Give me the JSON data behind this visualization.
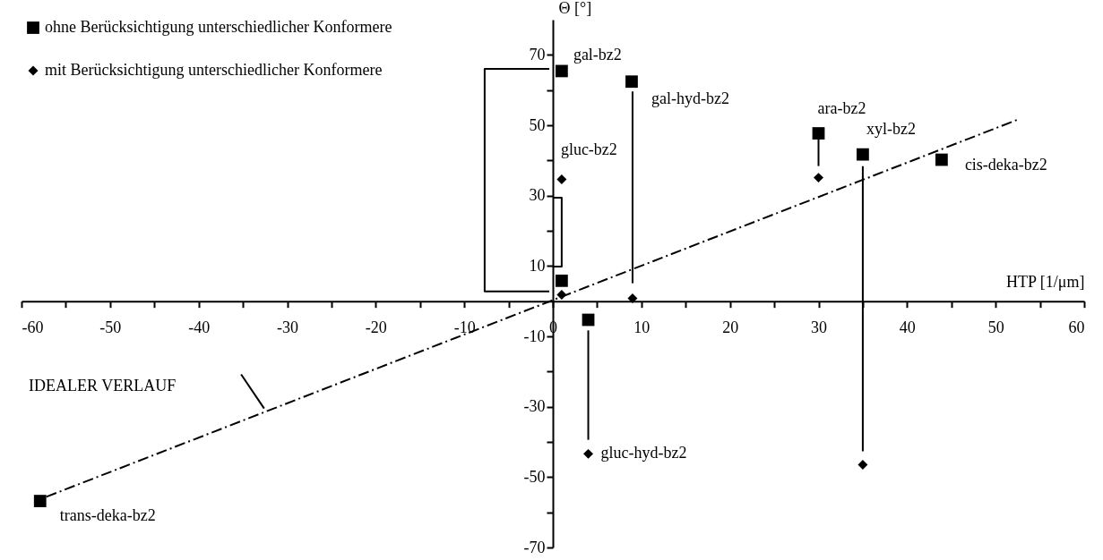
{
  "chart_data": {
    "type": "scatter",
    "xlabel": "HTP [1/μm]",
    "ylabel": "Θ [°]",
    "xlim": [
      -60,
      60
    ],
    "ylim": [
      -70,
      80
    ],
    "xticks": [
      -60,
      {
        "value": -55,
        "label": null
      },
      -50,
      {
        "value": -45,
        "label": null
      },
      -40,
      {
        "value": -35,
        "label": null
      },
      -30,
      {
        "value": -25,
        "label": null
      },
      -20,
      {
        "value": -15,
        "label": null
      },
      -10,
      {
        "value": -5,
        "label": null
      },
      0,
      {
        "value": 5,
        "label": null
      },
      10,
      {
        "value": 15,
        "label": null
      },
      20,
      {
        "value": 25,
        "label": null
      },
      30,
      {
        "value": 35,
        "label": null
      },
      40,
      {
        "value": 45,
        "label": null
      },
      50,
      {
        "value": 55,
        "label": null
      },
      60
    ],
    "yticks": [
      -70,
      {
        "value": -60,
        "label": null
      },
      -50,
      {
        "value": -40,
        "label": null
      },
      -30,
      {
        "value": -20,
        "label": null
      },
      -10,
      10,
      {
        "value": 20,
        "label": null
      },
      30,
      {
        "value": 40,
        "label": null
      },
      50,
      {
        "value": 60,
        "label": null
      },
      70
    ],
    "legend": "top left",
    "series": [
      {
        "name": "ohne Berücksichtigung unterschiedlicher Konformere",
        "marker": "square",
        "color": "#000000",
        "x": [
          1.0,
          8.9,
          1.0,
          4.0,
          30.0,
          35.0,
          43.9,
          -57.9
        ],
        "values": [
          65.4,
          62.4,
          5.8,
          -5.3,
          47.7,
          41.7,
          40.2,
          -56.8
        ]
      },
      {
        "name": "mit Berücksichtigung unterschiedlicher Konformere",
        "marker": "diamond",
        "color": "#000000",
        "x": [
          1.0,
          1.0,
          9.0,
          4.0,
          30.0,
          35.0
        ],
        "values": [
          34.6,
          1.8,
          0.8,
          -43.4,
          35.1,
          -46.5
        ]
      },
      {
        "type": "line",
        "line_style": "dashed",
        "color": "#000000",
        "x": [
          -57.2,
          52.4
        ],
        "values": [
          -55.6,
          51.5
        ]
      },
      {
        "type": "line",
        "line_style": "solid",
        "color": "#000000",
        "x": [
          -0.4,
          -7.7,
          -7.7,
          -0.4
        ],
        "values": [
          66.0,
          66.0,
          2.8,
          2.8
        ]
      },
      {
        "type": "line",
        "line_style": "solid",
        "color": "#000000",
        "x": [
          0,
          1.0,
          1.0,
          0
        ],
        "values": [
          29.4,
          29.4,
          9.8,
          9.8
        ]
      },
      {
        "type": "line",
        "line_style": "solid",
        "color": "#000000",
        "x": [
          9.0,
          9.0
        ],
        "values": [
          59.6,
          5.1
        ]
      },
      {
        "type": "line",
        "line_style": "solid",
        "color": "#000000",
        "x": [
          4.0,
          4.0
        ],
        "values": [
          -8.3,
          -39.4
        ]
      },
      {
        "type": "line",
        "line_style": "solid",
        "color": "#000000",
        "x": [
          30.0,
          30.0
        ],
        "values": [
          46.0,
          38.4
        ]
      },
      {
        "type": "line",
        "line_style": "solid",
        "color": "#000000",
        "x": [
          35.0,
          35.0
        ],
        "values": [
          38.4,
          -42.7
        ]
      },
      {
        "type": "line",
        "line_style": "solid",
        "color": "#000000",
        "x": [
          -35.2,
          -32.6
        ],
        "values": [
          -20.8,
          -30.5
        ]
      }
    ],
    "annotations": [
      {
        "text": "gal-bz2",
        "x": 1.0,
        "y": 65.4
      },
      {
        "text": "gal-hyd-bz2",
        "x": 8.9,
        "y": 62.4
      },
      {
        "text": "gluc-bz2",
        "x": 1.0,
        "y": 34.6
      },
      {
        "text": "ara-bz2",
        "x": 30.0,
        "y": 47.7
      },
      {
        "text": "xyl-bz2",
        "x": 35.0,
        "y": 41.7
      },
      {
        "text": "cis-deka-bz2",
        "x": 43.9,
        "y": 40.2
      },
      {
        "text": "gluc-hyd-bz2",
        "x": 4.0,
        "y": -43.4
      },
      {
        "text": "trans-deka-bz2",
        "x": -57.9,
        "y": -56.8
      },
      "IDEALER VERLAUF"
    ]
  }
}
